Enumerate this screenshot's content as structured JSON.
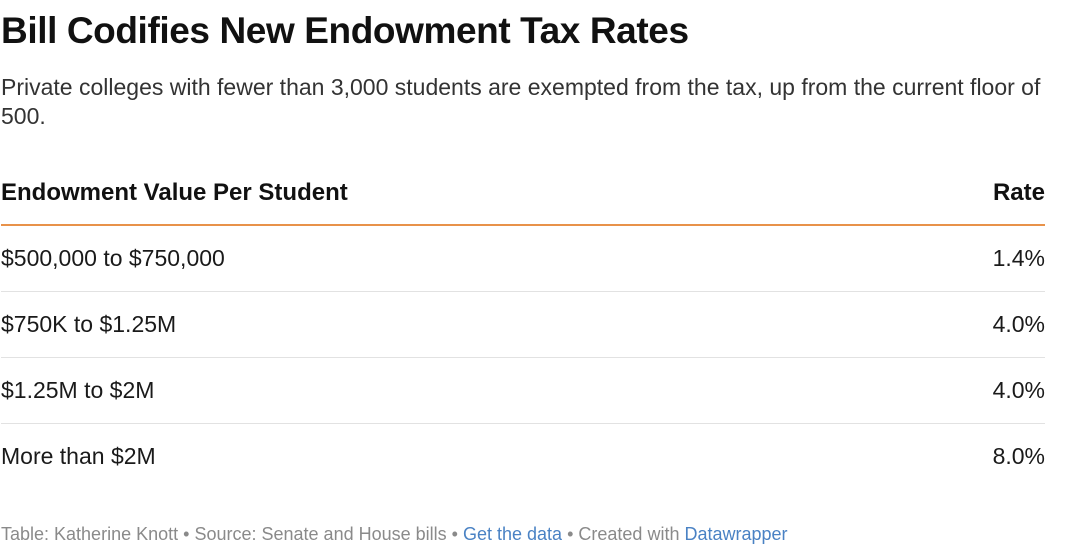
{
  "chart_data": {
    "type": "table",
    "title": "Bill Codifies New Endowment Tax Rates",
    "subtitle": "Private colleges with fewer than 3,000 students are exempted from the tax, up from the current floor of 500.",
    "columns": [
      "Endowment Value Per Student",
      "Rate"
    ],
    "rows": [
      {
        "range": "$500,000 to $750,000",
        "rate": "1.4%"
      },
      {
        "range": "$750K to $1.25M",
        "rate": "4.0%"
      },
      {
        "range": "$1.25M to $2M",
        "rate": "4.0%"
      },
      {
        "range": "More than $2M",
        "rate": "8.0%"
      }
    ],
    "values": [
      1.4,
      4.0,
      4.0,
      8.0
    ],
    "accent_color": "#e8924a"
  },
  "footer": {
    "byline": "Table: Katherine Knott",
    "separator": "•",
    "source": "Source: Senate and House bills",
    "get_data": "Get the data",
    "created_with": "Created with",
    "tool": "Datawrapper",
    "link_color": "#4a82c4"
  }
}
